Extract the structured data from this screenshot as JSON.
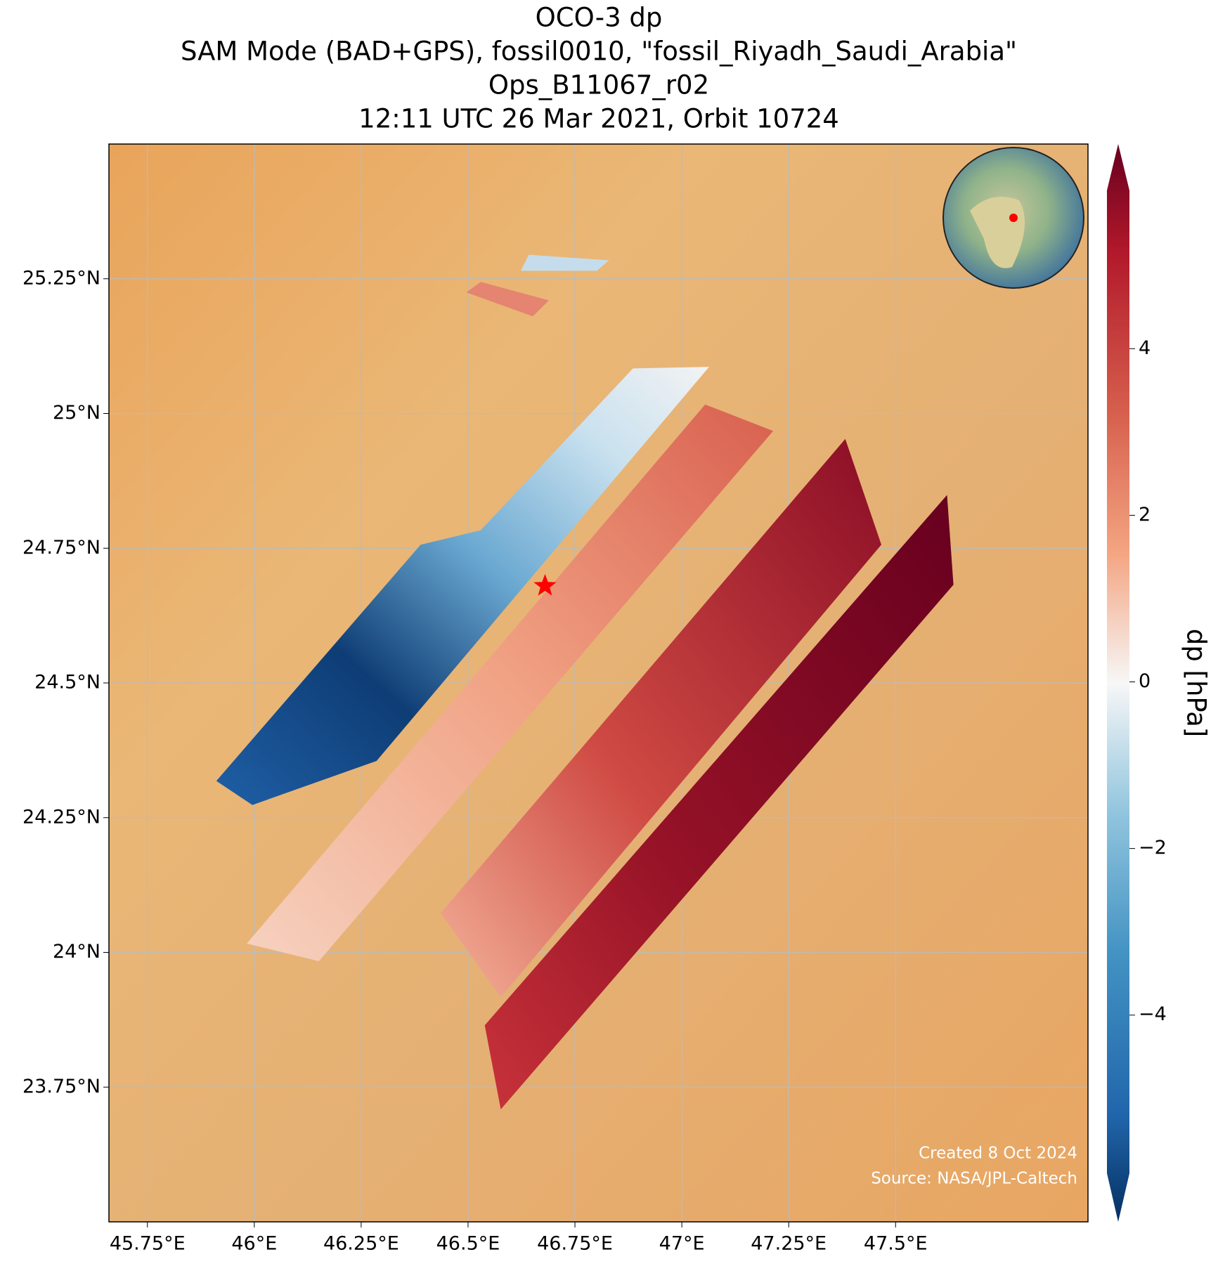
{
  "chart_data": {
    "type": "map",
    "title": [
      "OCO-3 dp",
      "SAM Mode (BAD+GPS), fossil0010, \"fossil_Riyadh_Saudi_Arabia\"",
      "Ops_B11067_r02",
      "12:11 UTC 26 Mar 2021, Orbit 10724"
    ],
    "xlim": [
      45.66,
      47.95
    ],
    "ylim": [
      23.5,
      25.5
    ],
    "xticks": [
      {
        "value": 45.75,
        "label": "45.75°E"
      },
      {
        "value": 46,
        "label": "46°E"
      },
      {
        "value": 46.25,
        "label": "46.25°E"
      },
      {
        "value": 46.5,
        "label": "46.5°E"
      },
      {
        "value": 46.75,
        "label": "46.75°E"
      },
      {
        "value": 47,
        "label": "47°E"
      },
      {
        "value": 47.25,
        "label": "47.25°E"
      },
      {
        "value": 47.5,
        "label": "47.5°E"
      }
    ],
    "yticks": [
      {
        "value": 23.75,
        "label": "23.75°N"
      },
      {
        "value": 24,
        "label": "24°N"
      },
      {
        "value": 24.25,
        "label": "24.25°N"
      },
      {
        "value": 24.5,
        "label": "24.5°N"
      },
      {
        "value": 24.75,
        "label": "24.75°N"
      },
      {
        "value": 25,
        "label": "25°N"
      },
      {
        "value": 25.25,
        "label": "25.25°N"
      }
    ],
    "grid": true,
    "target": {
      "lon": 46.68,
      "lat": 24.68,
      "color": "#ff0000"
    },
    "colorbar": {
      "label": "dp [hPa]",
      "clim": [
        -5.9,
        5.9
      ],
      "extend": "both",
      "ticks": [
        {
          "value": -4,
          "label": "−4"
        },
        {
          "value": -2,
          "label": "−2"
        },
        0,
        2,
        4
      ]
    },
    "credits": [
      "Created 8 Oct 2024",
      "Source: NASA/JPL-Caltech"
    ]
  }
}
